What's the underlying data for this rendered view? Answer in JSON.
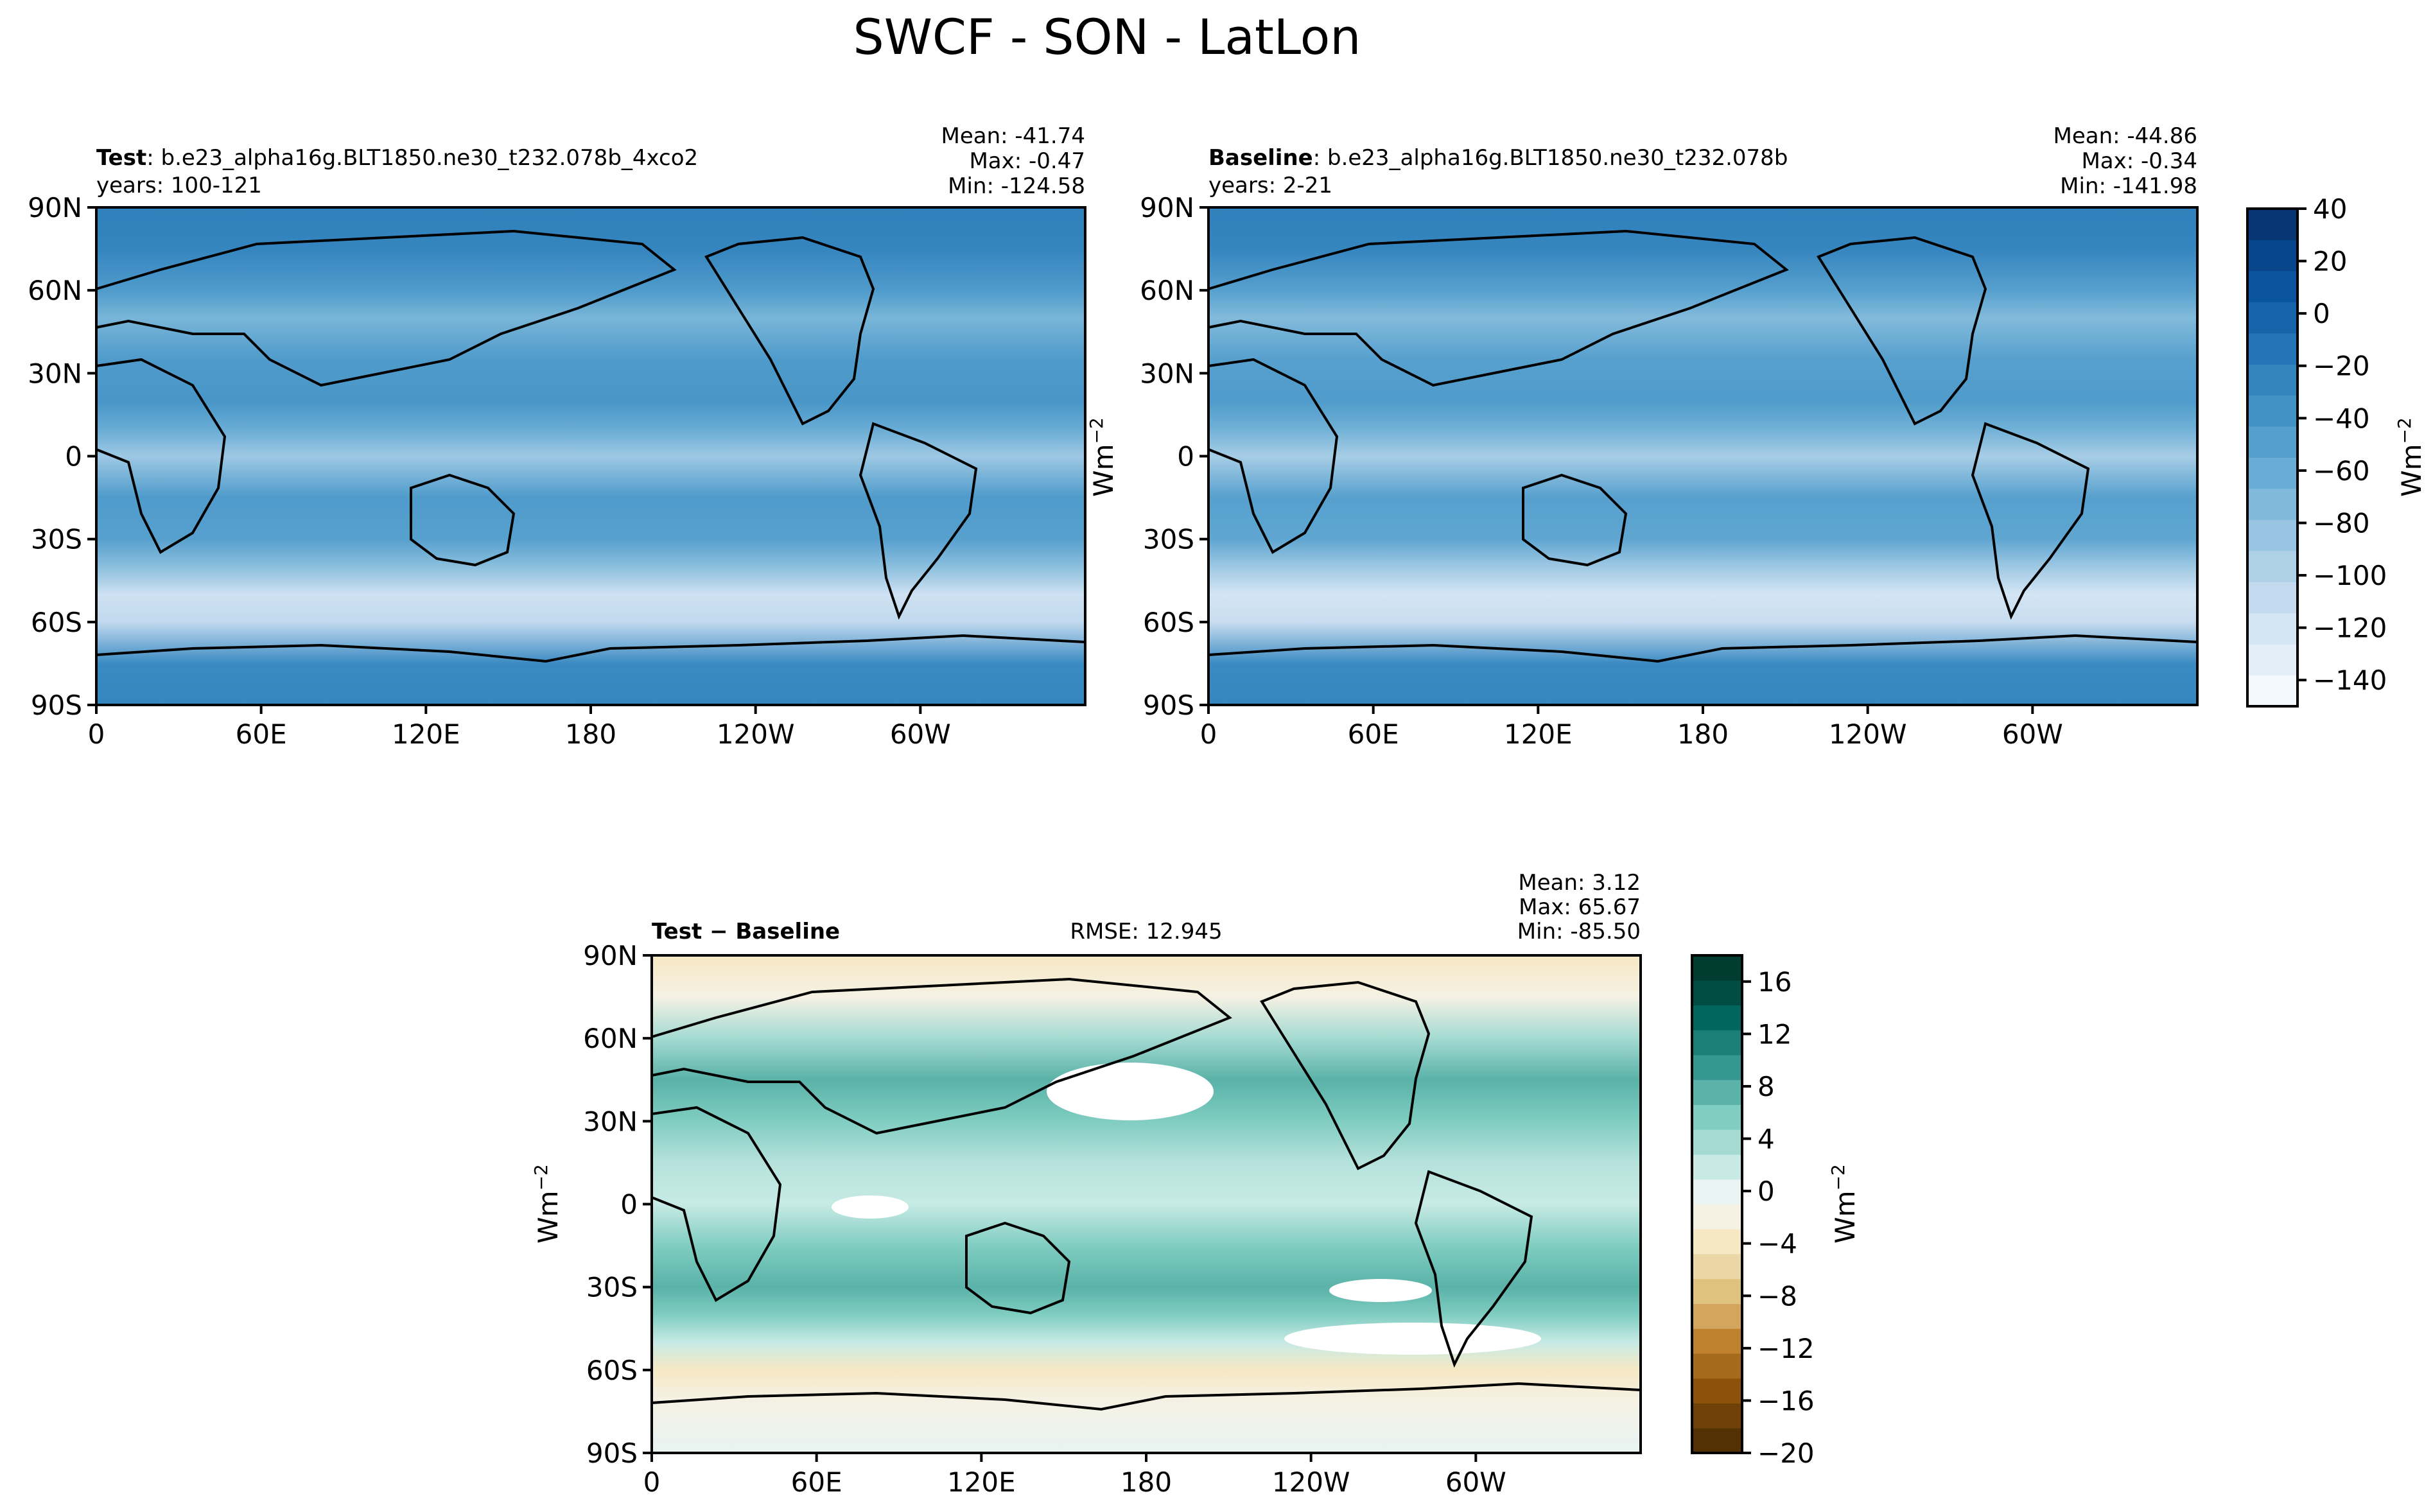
{
  "title": "SWCF - SON - LatLon",
  "units": "Wm",
  "units_exp": "−2",
  "axes_ticks": {
    "x": [
      "0",
      "60E",
      "120E",
      "180",
      "120W",
      "60W"
    ],
    "y": [
      "90N",
      "60N",
      "30N",
      "0",
      "30S",
      "60S",
      "90S"
    ]
  },
  "colors": {
    "cmap_blue": [
      "#f4f9fe",
      "#e3eef9",
      "#d4e5f4",
      "#c4dbef",
      "#afd1e7",
      "#98c5e1",
      "#80b9da",
      "#69acd5",
      "#559fcd",
      "#4292c6",
      "#3383be",
      "#2474b7",
      "#1764ab",
      "#0b559f",
      "#08468b",
      "#083674"
    ],
    "cmap_diff": [
      "#543005",
      "#6f4108",
      "#8c510a",
      "#a66a1d",
      "#bf812d",
      "#d4a55c",
      "#dfc27d",
      "#ebd6a7",
      "#f6e8c3",
      "#f5f1e3",
      "#e8f3f2",
      "#c7eae5",
      "#a4dad2",
      "#80cdc1",
      "#5ab2a8",
      "#35978f",
      "#1b7e77",
      "#01665e",
      "#014d44",
      "#003c30"
    ],
    "land": "#000000"
  },
  "panels": {
    "test": {
      "label_bold": "Test",
      "label_rest": ": b.e23_alpha16g.BLT1850.ne30_t232.078b_4xco2",
      "years": "years: 100-121",
      "mean": "Mean: -41.74",
      "max": "Max: -0.47",
      "min": "Min: -124.58"
    },
    "baseline": {
      "label_bold": "Baseline",
      "label_rest": ": b.e23_alpha16g.BLT1850.ne30_t232.078b",
      "years": "years: 2-21",
      "mean": "Mean: -44.86",
      "max": "Max: -0.34",
      "min": "Min: -141.98"
    },
    "diff": {
      "label": "Test − Baseline",
      "rmse": "RMSE: 12.945",
      "mean": "Mean:  3.12",
      "max": "Max: 65.67",
      "min": "Min: -85.50"
    }
  },
  "chart_data": [
    {
      "type": "heatmap",
      "name": "Test",
      "variable": "SWCF",
      "season": "SON",
      "x_range": [
        0,
        360
      ],
      "y_range": [
        -90,
        90
      ],
      "approx_zonal_mean_profile": {
        "lat": [
          -90,
          -75,
          -60,
          -50,
          -40,
          -30,
          -15,
          0,
          10,
          20,
          35,
          50,
          60,
          75,
          90
        ],
        "value": [
          -25,
          -30,
          -110,
          -120,
          -80,
          -50,
          -45,
          -90,
          -60,
          -40,
          -45,
          -70,
          -45,
          -25,
          -20
        ]
      }
    },
    {
      "type": "heatmap",
      "name": "Baseline",
      "variable": "SWCF",
      "season": "SON",
      "x_range": [
        0,
        360
      ],
      "y_range": [
        -90,
        90
      ],
      "approx_zonal_mean_profile": {
        "lat": [
          -90,
          -75,
          -60,
          -50,
          -40,
          -30,
          -15,
          0,
          10,
          20,
          35,
          50,
          60,
          75,
          90
        ],
        "value": [
          -25,
          -30,
          -115,
          -125,
          -90,
          -55,
          -50,
          -95,
          -65,
          -45,
          -50,
          -75,
          -50,
          -25,
          -20
        ]
      }
    },
    {
      "type": "heatmap",
      "name": "Test − Baseline",
      "variable": "SWCF difference",
      "season": "SON",
      "x_range": [
        0,
        360
      ],
      "y_range": [
        -90,
        90
      ],
      "approx_zonal_mean_profile": {
        "lat": [
          -90,
          -70,
          -60,
          -50,
          -40,
          -30,
          -15,
          0,
          15,
          30,
          45,
          60,
          75,
          90
        ],
        "value": [
          0,
          -2,
          -4,
          2,
          6,
          8,
          6,
          2,
          3,
          6,
          8,
          4,
          -2,
          -4
        ]
      }
    }
  ],
  "colorbars": {
    "top": {
      "ticks": [
        "40",
        "20",
        "0",
        "−20",
        "−40",
        "−60",
        "−80",
        "−100",
        "−120",
        "−140"
      ],
      "tick_values": [
        40,
        20,
        0,
        -20,
        -40,
        -60,
        -80,
        -100,
        -120,
        -140
      ],
      "range": [
        -150,
        40
      ]
    },
    "diff": {
      "ticks": [
        "16",
        "12",
        "8",
        "4",
        "0",
        "−4",
        "−8",
        "−12",
        "−16",
        "−20"
      ],
      "tick_values": [
        16,
        12,
        8,
        4,
        0,
        -4,
        -8,
        -12,
        -16,
        -20
      ],
      "range": [
        -20,
        18
      ]
    }
  }
}
